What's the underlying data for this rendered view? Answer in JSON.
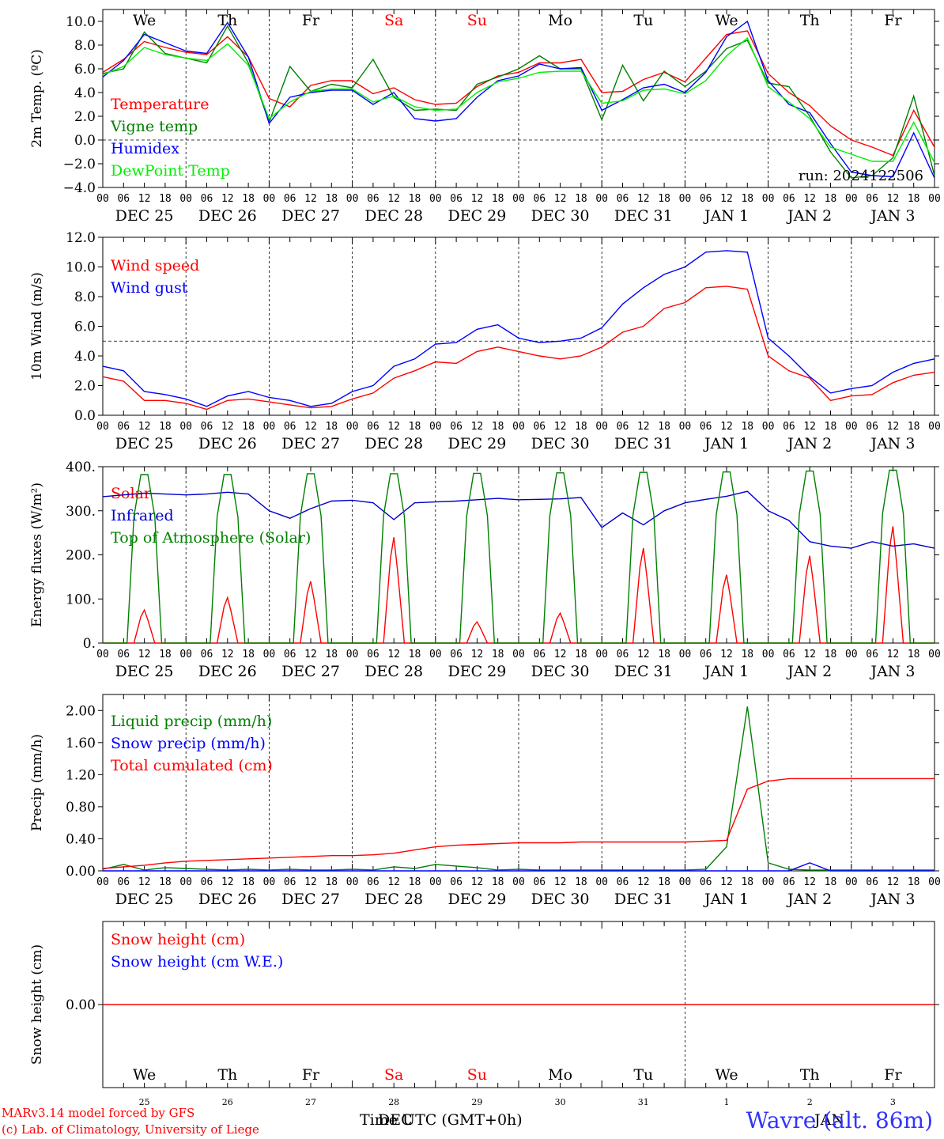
{
  "footer": {
    "model_line": "MARv3.14 model forced by GFS",
    "copyright_line": "(c) Lab. of Climatology, University of Liege",
    "station": "Wavre (alt. 86m)",
    "time_label": "Time UTC (GMT+0h)",
    "month_label": "DEC",
    "month_label_2": "JAN"
  },
  "axis": {
    "hour_ticks": [
      "00",
      "06",
      "12",
      "18"
    ],
    "date_labels": [
      "DEC 25",
      "DEC 26",
      "DEC 27",
      "DEC 28",
      "DEC 29",
      "DEC 30",
      "DEC 31",
      "JAN  1",
      "JAN  2",
      "JAN  3"
    ],
    "weekdays": [
      {
        "label": "We",
        "color": "#000000"
      },
      {
        "label": "Th",
        "color": "#000000"
      },
      {
        "label": "Fr",
        "color": "#000000"
      },
      {
        "label": "Sa",
        "color": "#ff0000"
      },
      {
        "label": "Su",
        "color": "#ff0000"
      },
      {
        "label": "Mo",
        "color": "#000000"
      },
      {
        "label": "Tu",
        "color": "#000000"
      },
      {
        "label": "We",
        "color": "#000000"
      },
      {
        "label": "Th",
        "color": "#000000"
      },
      {
        "label": "Fr",
        "color": "#000000"
      }
    ],
    "bottom_day_numbers": [
      "25",
      "26",
      "27",
      "28",
      "29",
      "30",
      "31",
      "1",
      "2",
      "3"
    ]
  },
  "chart_data": [
    {
      "type": "line",
      "ylabel": "2m Temp. (ºC)",
      "ylim": [
        -4,
        11
      ],
      "yticks": [
        "10.0",
        "8.0",
        "6.0",
        "4.0",
        "2.0",
        "0.0",
        "−2.0",
        "−4.0"
      ],
      "ytick_values": [
        10,
        8,
        6,
        4,
        2,
        0,
        -2,
        -4
      ],
      "dashed_y": 0,
      "annotation": "run: 2024122506",
      "x": [
        0,
        6,
        12,
        18,
        24,
        30,
        36,
        42,
        48,
        54,
        60,
        66,
        72,
        78,
        84,
        90,
        96,
        102,
        108,
        114,
        120,
        126,
        132,
        138,
        144,
        150,
        156,
        162,
        168,
        174,
        180,
        186,
        192,
        198,
        204,
        210,
        216,
        222,
        228,
        234,
        240
      ],
      "series": [
        {
          "name": "Temperature",
          "color": "#ff0000",
          "values": [
            5.7,
            6.8,
            8.3,
            7.8,
            7.4,
            7.2,
            8.7,
            7.0,
            3.5,
            2.8,
            4.6,
            5.0,
            5.0,
            3.9,
            4.4,
            3.4,
            3.0,
            3.1,
            4.5,
            5.4,
            5.7,
            6.5,
            6.5,
            6.8,
            4.0,
            4.1,
            5.1,
            5.7,
            4.9,
            6.9,
            8.9,
            9.2,
            5.6,
            4.0,
            2.9,
            1.2,
            0.0,
            -0.6,
            -1.3,
            2.5,
            -0.6
          ]
        },
        {
          "name": "Vigne temp",
          "color": "#008000",
          "values": [
            5.6,
            6.0,
            9.1,
            7.3,
            6.9,
            6.5,
            9.6,
            6.5,
            1.5,
            6.2,
            4.1,
            4.7,
            4.4,
            6.8,
            3.6,
            2.5,
            2.6,
            2.5,
            4.7,
            5.3,
            6.0,
            7.1,
            6.0,
            6.0,
            1.7,
            6.3,
            3.3,
            5.8,
            4.5,
            5.8,
            7.7,
            8.4,
            4.8,
            4.5,
            2.0,
            -1.0,
            -3.2,
            -3.0,
            -1.5,
            3.7,
            -3.0
          ]
        },
        {
          "name": "Humidex",
          "color": "#0000ff",
          "values": [
            5.3,
            6.7,
            8.9,
            8.2,
            7.5,
            7.3,
            9.9,
            7.0,
            1.4,
            3.6,
            4.0,
            4.2,
            4.2,
            3.0,
            4.0,
            1.8,
            1.6,
            1.8,
            3.6,
            5.0,
            5.4,
            6.4,
            6.0,
            6.1,
            2.5,
            3.4,
            4.4,
            4.7,
            4.0,
            5.7,
            8.7,
            10.0,
            5.0,
            3.0,
            2.3,
            -0.3,
            -2.7,
            -3.0,
            -3.1,
            0.6,
            -3.2
          ]
        },
        {
          "name": "DewPoint Temp",
          "color": "#00ee00",
          "values": [
            5.5,
            6.2,
            7.8,
            7.2,
            6.9,
            6.7,
            8.1,
            6.3,
            1.8,
            3.2,
            4.1,
            4.3,
            4.3,
            3.2,
            3.7,
            2.8,
            2.5,
            2.6,
            4.0,
            4.9,
            5.2,
            5.7,
            5.8,
            5.8,
            3.1,
            3.3,
            4.2,
            4.3,
            3.9,
            5.0,
            7.1,
            8.6,
            4.5,
            3.2,
            1.8,
            -0.6,
            -1.2,
            -1.8,
            -1.8,
            1.5,
            -1.9
          ]
        }
      ]
    },
    {
      "type": "line",
      "ylabel": "10m Wind (m/s)",
      "ylim": [
        0,
        12
      ],
      "yticks": [
        "12.0",
        "10.0",
        "8.0",
        "6.0",
        "4.0",
        "2.0",
        "0.0"
      ],
      "ytick_values": [
        12,
        10,
        8,
        6,
        4,
        2,
        0
      ],
      "dashed_y": 5,
      "x": [
        0,
        6,
        12,
        18,
        24,
        30,
        36,
        42,
        48,
        54,
        60,
        66,
        72,
        78,
        84,
        90,
        96,
        102,
        108,
        114,
        120,
        126,
        132,
        138,
        144,
        150,
        156,
        162,
        168,
        174,
        180,
        186,
        192,
        198,
        204,
        210,
        216,
        222,
        228,
        234,
        240
      ],
      "series": [
        {
          "name": "Wind speed",
          "color": "#ff0000",
          "values": [
            2.6,
            2.3,
            1.0,
            1.0,
            0.8,
            0.4,
            1.0,
            1.1,
            0.9,
            0.7,
            0.5,
            0.6,
            1.1,
            1.5,
            2.5,
            3.0,
            3.6,
            3.5,
            4.3,
            4.6,
            4.3,
            4.0,
            3.8,
            4.0,
            4.6,
            5.6,
            6.0,
            7.2,
            7.6,
            8.6,
            8.7,
            8.5,
            4.0,
            3.0,
            2.5,
            1.0,
            1.3,
            1.4,
            2.2,
            2.7,
            2.9
          ]
        },
        {
          "name": "Wind gust",
          "color": "#0000ff",
          "values": [
            3.3,
            3.0,
            1.6,
            1.4,
            1.1,
            0.6,
            1.3,
            1.6,
            1.2,
            1.0,
            0.6,
            0.8,
            1.6,
            2.0,
            3.3,
            3.8,
            4.8,
            4.9,
            5.8,
            6.1,
            5.2,
            4.9,
            5.0,
            5.2,
            5.9,
            7.5,
            8.6,
            9.5,
            10.0,
            11.0,
            11.1,
            11.0,
            5.2,
            4.0,
            2.6,
            1.5,
            1.8,
            2.0,
            2.9,
            3.5,
            3.8
          ]
        }
      ]
    },
    {
      "type": "line",
      "ylabel": "Energy fluxes (W/m²)",
      "ylim": [
        0,
        400
      ],
      "yticks": [
        "400.",
        "300.",
        "200.",
        "100.",
        "0."
      ],
      "ytick_values": [
        400,
        300,
        200,
        100,
        0
      ],
      "series": [
        {
          "name": "Solar",
          "color": "#ff0000",
          "peaks": [
            75,
            103,
            140,
            240,
            48,
            68,
            215,
            155,
            198,
            265
          ]
        },
        {
          "name": "Infrared",
          "color": "#0000cc",
          "x": [
            0,
            6,
            12,
            18,
            24,
            30,
            36,
            42,
            48,
            54,
            60,
            66,
            72,
            78,
            84,
            90,
            96,
            102,
            108,
            114,
            120,
            126,
            132,
            138,
            144,
            150,
            156,
            162,
            168,
            174,
            180,
            186,
            192,
            198,
            204,
            210,
            216,
            222,
            228,
            234,
            240
          ],
          "values": [
            332,
            336,
            340,
            338,
            336,
            338,
            342,
            338,
            300,
            283,
            305,
            322,
            324,
            318,
            280,
            318,
            320,
            322,
            325,
            328,
            325,
            326,
            327,
            330,
            262,
            295,
            268,
            300,
            318,
            326,
            333,
            344,
            300,
            278,
            230,
            220,
            215,
            230,
            220,
            225,
            215
          ]
        },
        {
          "name": "Top of Atmosphere (Solar)",
          "color": "#008000",
          "peaks": [
            382,
            382,
            384,
            384,
            385,
            386,
            387,
            388,
            390,
            392
          ]
        }
      ]
    },
    {
      "type": "line",
      "ylabel": "Precip (mm/h)",
      "ylim": [
        0,
        2.2
      ],
      "yticks": [
        "2.00",
        "1.60",
        "1.20",
        "0.80",
        "0.40",
        "0.00"
      ],
      "ytick_values": [
        2.0,
        1.6,
        1.2,
        0.8,
        0.4,
        0.0
      ],
      "x": [
        0,
        6,
        12,
        18,
        24,
        30,
        36,
        42,
        48,
        54,
        60,
        66,
        72,
        78,
        84,
        90,
        96,
        102,
        108,
        114,
        120,
        126,
        132,
        138,
        144,
        150,
        156,
        162,
        168,
        174,
        180,
        186,
        192,
        198,
        204,
        210,
        216,
        222,
        228,
        234,
        240
      ],
      "series": [
        {
          "name": "Liquid precip (mm/h)",
          "color": "#008000",
          "values": [
            0.02,
            0.08,
            0.01,
            0.04,
            0.03,
            0.02,
            0.01,
            0.02,
            0.01,
            0.02,
            0.01,
            0.01,
            0.02,
            0.01,
            0.05,
            0.03,
            0.08,
            0.06,
            0.04,
            0.01,
            0.02,
            0.01,
            0.01,
            0.01,
            0.01,
            0.01,
            0.01,
            0.01,
            0.01,
            0.02,
            0.3,
            2.05,
            0.1,
            0.02,
            0.01,
            0.01,
            0.01,
            0.01,
            0.01,
            0.01,
            0.01
          ]
        },
        {
          "name": "Snow precip (mm/h)",
          "color": "#0000ff",
          "values": [
            0,
            0,
            0,
            0,
            0,
            0,
            0,
            0,
            0,
            0,
            0,
            0,
            0,
            0,
            0,
            0,
            0,
            0,
            0,
            0,
            0,
            0,
            0,
            0,
            0,
            0,
            0,
            0,
            0,
            0,
            0,
            0,
            0,
            0,
            0.1,
            0,
            0,
            0,
            0,
            0,
            0
          ]
        },
        {
          "name": "Total cumulated (cm)",
          "color": "#ff0000",
          "values": [
            0.03,
            0.05,
            0.07,
            0.1,
            0.12,
            0.13,
            0.14,
            0.15,
            0.16,
            0.17,
            0.18,
            0.19,
            0.19,
            0.2,
            0.22,
            0.26,
            0.3,
            0.32,
            0.33,
            0.34,
            0.35,
            0.35,
            0.35,
            0.36,
            0.36,
            0.36,
            0.36,
            0.36,
            0.36,
            0.37,
            0.38,
            1.02,
            1.12,
            1.15,
            1.15,
            1.15,
            1.15,
            1.15,
            1.15,
            1.15,
            1.15
          ]
        }
      ]
    },
    {
      "type": "line",
      "ylabel": "Snow height (cm)",
      "ylim": [
        -1,
        1
      ],
      "yticks": [
        "0.00"
      ],
      "ytick_values": [
        0
      ],
      "series": [
        {
          "name": "Snow height (cm)",
          "color": "#ff0000",
          "values": [
            0,
            0
          ]
        },
        {
          "name": "Snow height (cm W.E.)",
          "color": "#0000ff",
          "values": []
        }
      ]
    }
  ]
}
